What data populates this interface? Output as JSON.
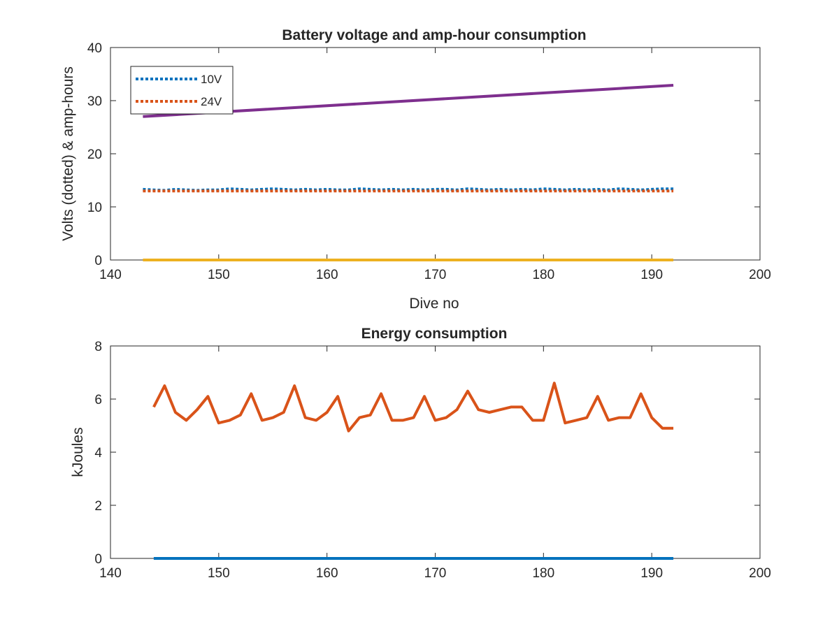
{
  "chart_data": [
    {
      "type": "line",
      "title": "Battery voltage and amp-hour consumption",
      "xlabel": "Dive no",
      "ylabel": "Volts (dotted) & amp-hours",
      "xlim": [
        140,
        200
      ],
      "ylim": [
        0,
        40
      ],
      "xticks": [
        "140",
        "150",
        "160",
        "170",
        "180",
        "190",
        "200"
      ],
      "yticks": [
        "0",
        "10",
        "20",
        "30",
        "40"
      ],
      "legend": {
        "placement": "top-left",
        "entries": [
          "10V",
          "24V"
        ]
      },
      "series": [
        {
          "name": "10V",
          "style": "dotted",
          "color": "#0072BD",
          "x": [
            143,
            144,
            145,
            146,
            147,
            148,
            149,
            150,
            151,
            152,
            153,
            154,
            155,
            156,
            157,
            158,
            159,
            160,
            161,
            162,
            163,
            164,
            165,
            166,
            167,
            168,
            169,
            170,
            171,
            172,
            173,
            174,
            175,
            176,
            177,
            178,
            179,
            180,
            181,
            182,
            183,
            184,
            185,
            186,
            187,
            188,
            189,
            190,
            191,
            192
          ],
          "y": [
            13.3,
            13.2,
            13.1,
            13.3,
            13.2,
            13.1,
            13.2,
            13.2,
            13.4,
            13.3,
            13.2,
            13.3,
            13.4,
            13.3,
            13.2,
            13.3,
            13.2,
            13.3,
            13.2,
            13.2,
            13.4,
            13.3,
            13.2,
            13.3,
            13.2,
            13.3,
            13.2,
            13.3,
            13.3,
            13.2,
            13.4,
            13.3,
            13.2,
            13.3,
            13.2,
            13.3,
            13.2,
            13.4,
            13.3,
            13.2,
            13.3,
            13.2,
            13.3,
            13.2,
            13.4,
            13.3,
            13.2,
            13.3,
            13.4,
            13.4
          ]
        },
        {
          "name": "24V",
          "style": "dotted",
          "color": "#D95319",
          "x": [
            143,
            192
          ],
          "y": [
            13.0,
            13.0
          ]
        },
        {
          "style": "solid",
          "color": "#7E2F8E",
          "x": [
            143,
            192
          ],
          "y": [
            27.0,
            32.9
          ]
        },
        {
          "style": "solid",
          "color": "#EDB120",
          "x": [
            143,
            192
          ],
          "y": [
            0,
            0
          ]
        }
      ]
    },
    {
      "type": "line",
      "title": "Energy consumption",
      "xlabel": "",
      "ylabel": "kJoules",
      "xlim": [
        140,
        200
      ],
      "ylim": [
        0,
        8
      ],
      "xticks": [
        "140",
        "150",
        "160",
        "170",
        "180",
        "190",
        "200"
      ],
      "yticks": [
        "0",
        "2",
        "4",
        "6",
        "8"
      ],
      "series": [
        {
          "style": "solid",
          "color": "#D95319",
          "x": [
            144,
            145,
            146,
            147,
            148,
            149,
            150,
            151,
            152,
            153,
            154,
            155,
            156,
            157,
            158,
            159,
            160,
            161,
            162,
            163,
            164,
            165,
            166,
            167,
            168,
            169,
            170,
            171,
            172,
            173,
            174,
            175,
            176,
            177,
            178,
            179,
            180,
            181,
            182,
            183,
            184,
            185,
            186,
            187,
            188,
            189,
            190,
            191,
            192
          ],
          "y": [
            5.7,
            6.5,
            5.5,
            5.2,
            5.6,
            6.1,
            5.1,
            5.2,
            5.4,
            6.2,
            5.2,
            5.3,
            5.5,
            6.5,
            5.3,
            5.2,
            5.5,
            6.1,
            4.8,
            5.3,
            5.4,
            6.2,
            5.2,
            5.2,
            5.3,
            6.1,
            5.2,
            5.3,
            5.6,
            6.3,
            5.6,
            5.5,
            5.6,
            5.7,
            5.7,
            5.2,
            5.2,
            6.6,
            5.1,
            5.2,
            5.3,
            6.1,
            5.2,
            5.3,
            5.3,
            6.2,
            5.3,
            4.9,
            4.9
          ]
        },
        {
          "style": "solid",
          "color": "#0072BD",
          "x": [
            144,
            192
          ],
          "y": [
            0,
            0
          ]
        }
      ]
    }
  ]
}
